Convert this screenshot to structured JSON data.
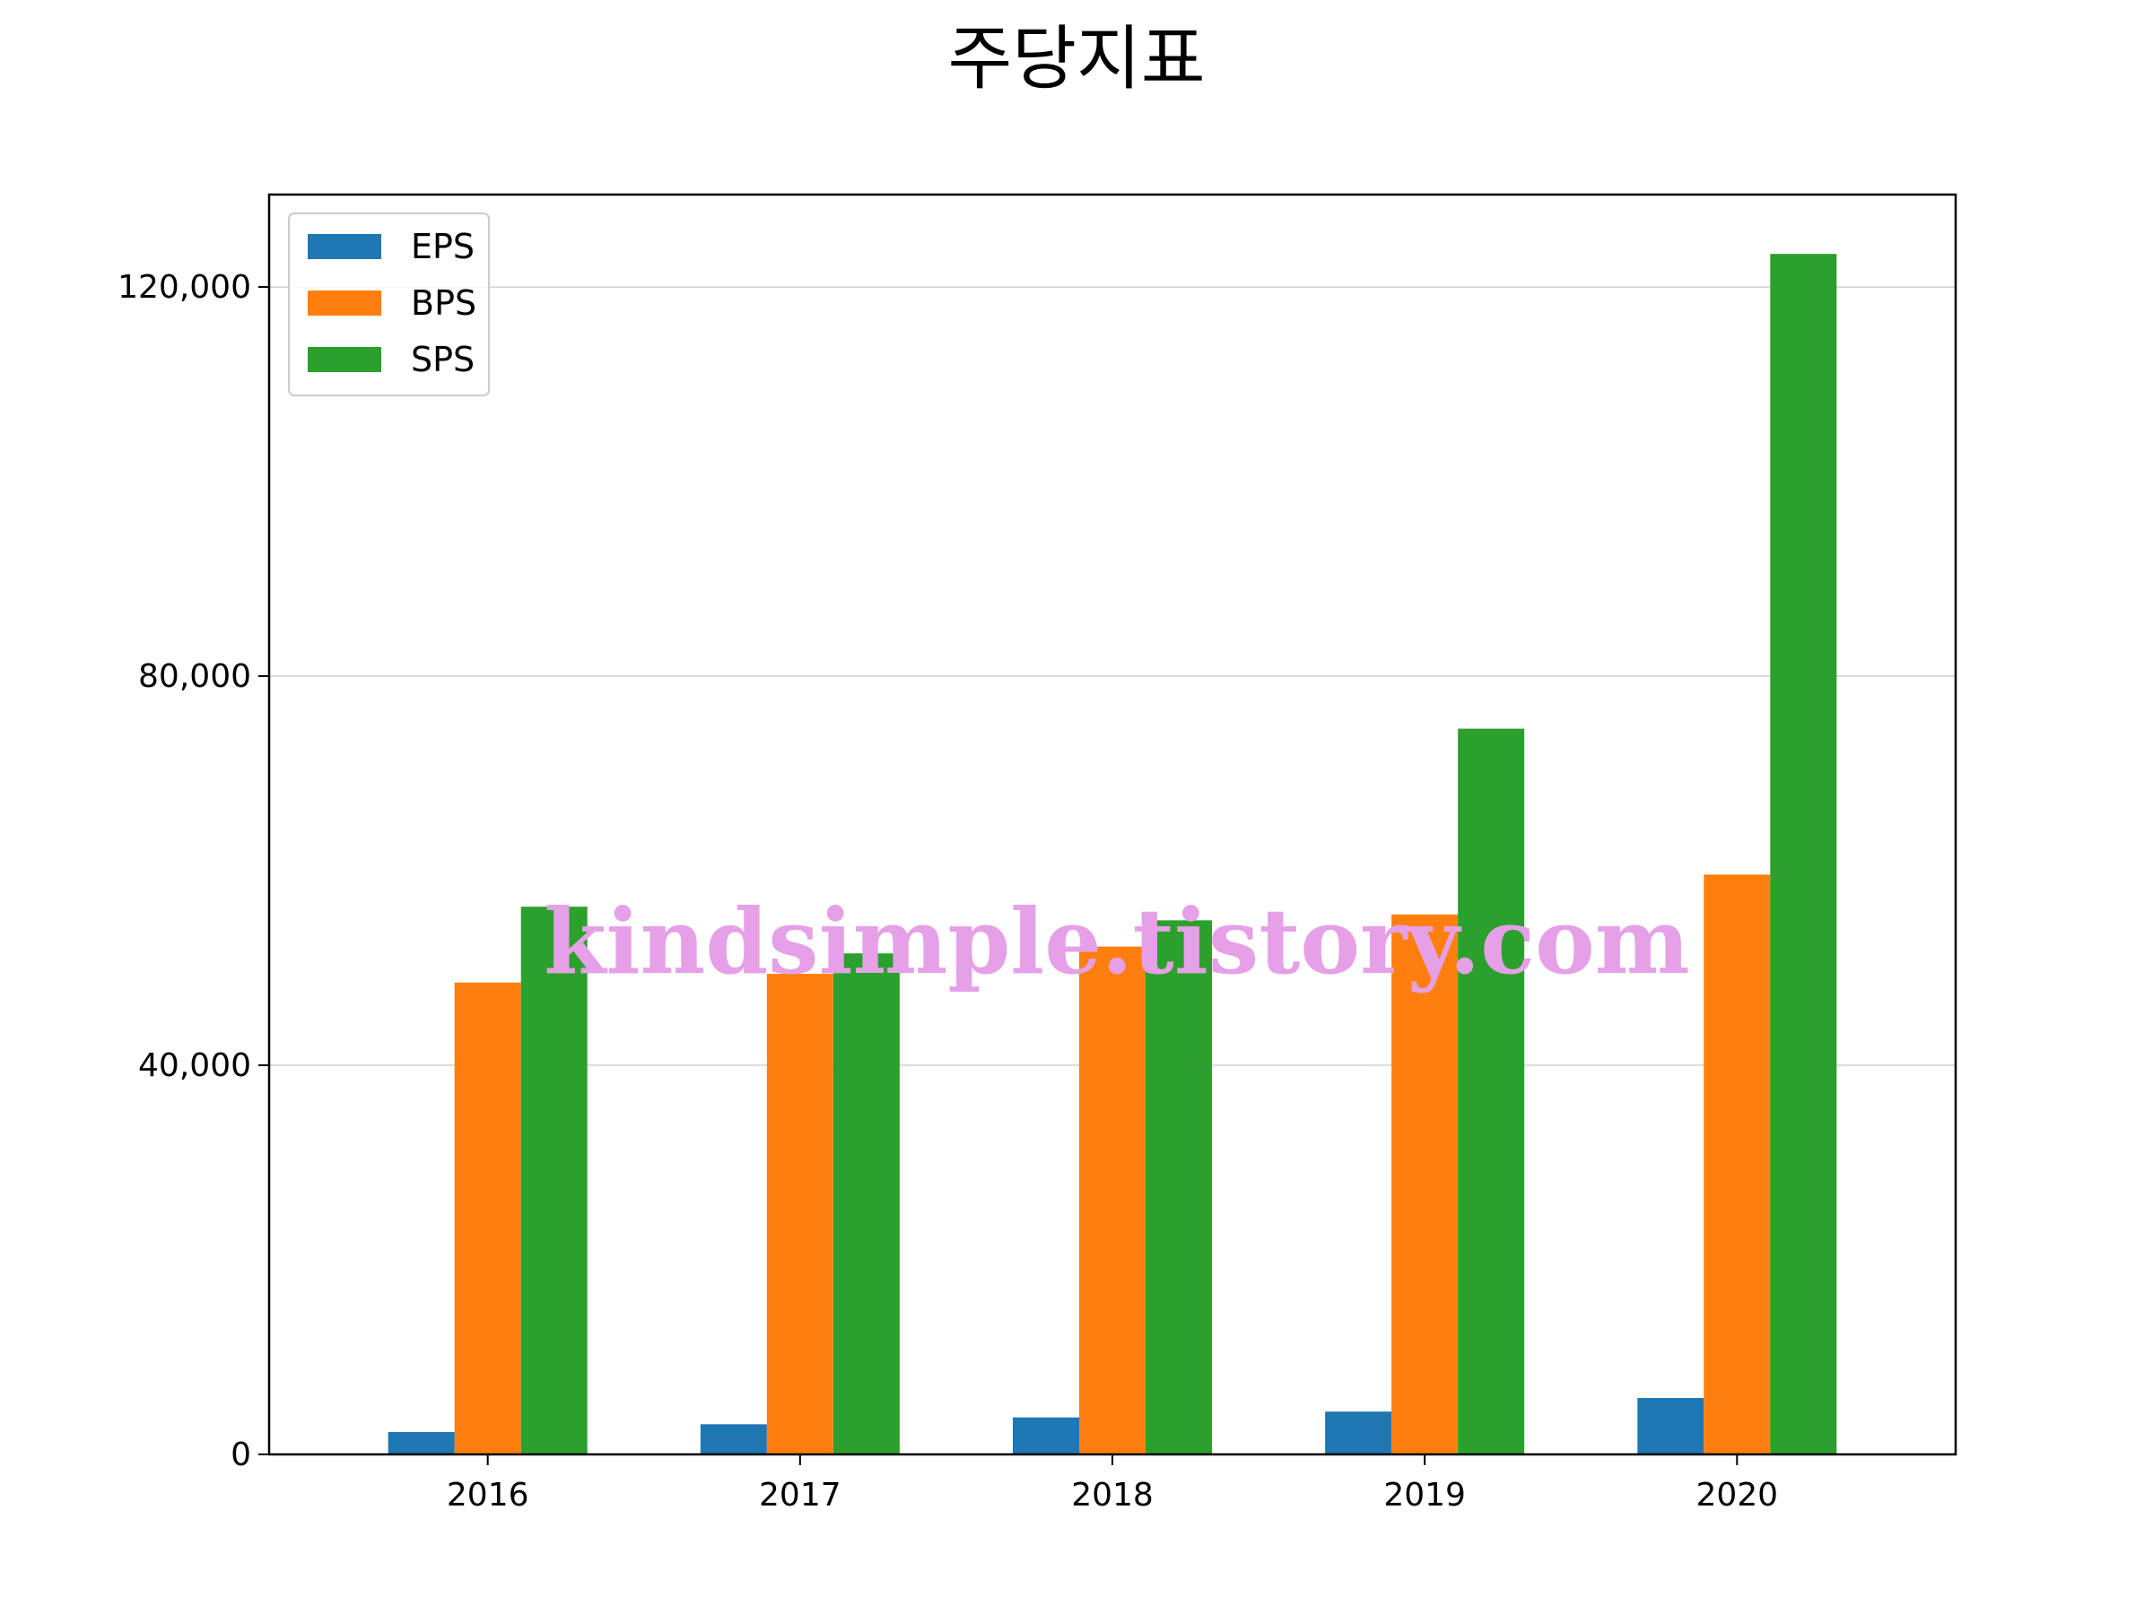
{
  "chart_data": {
    "type": "bar",
    "title": "주당지표",
    "xlabel": "",
    "ylabel": "",
    "categories": [
      "2016",
      "2017",
      "2018",
      "2019",
      "2020"
    ],
    "series": [
      {
        "name": "EPS",
        "color": "#1f77b4",
        "values": [
          2300,
          3100,
          3800,
          4400,
          5800
        ]
      },
      {
        "name": "BPS",
        "color": "#ff7f0e",
        "values": [
          48500,
          49400,
          52200,
          55500,
          59600
        ]
      },
      {
        "name": "SPS",
        "color": "#2ca02c",
        "values": [
          56300,
          51500,
          54900,
          74600,
          123400
        ]
      }
    ],
    "ylim": [
      0,
      129500
    ],
    "yticks": [
      0,
      40000,
      80000,
      120000
    ],
    "ytick_labels": [
      "0",
      "40,000",
      "80,000",
      "120,000"
    ],
    "grid": "horizontal",
    "legend_position": "upper-left"
  },
  "watermark": {
    "text": "kindsimple.tistory.com",
    "color": "#e5a0e8"
  }
}
